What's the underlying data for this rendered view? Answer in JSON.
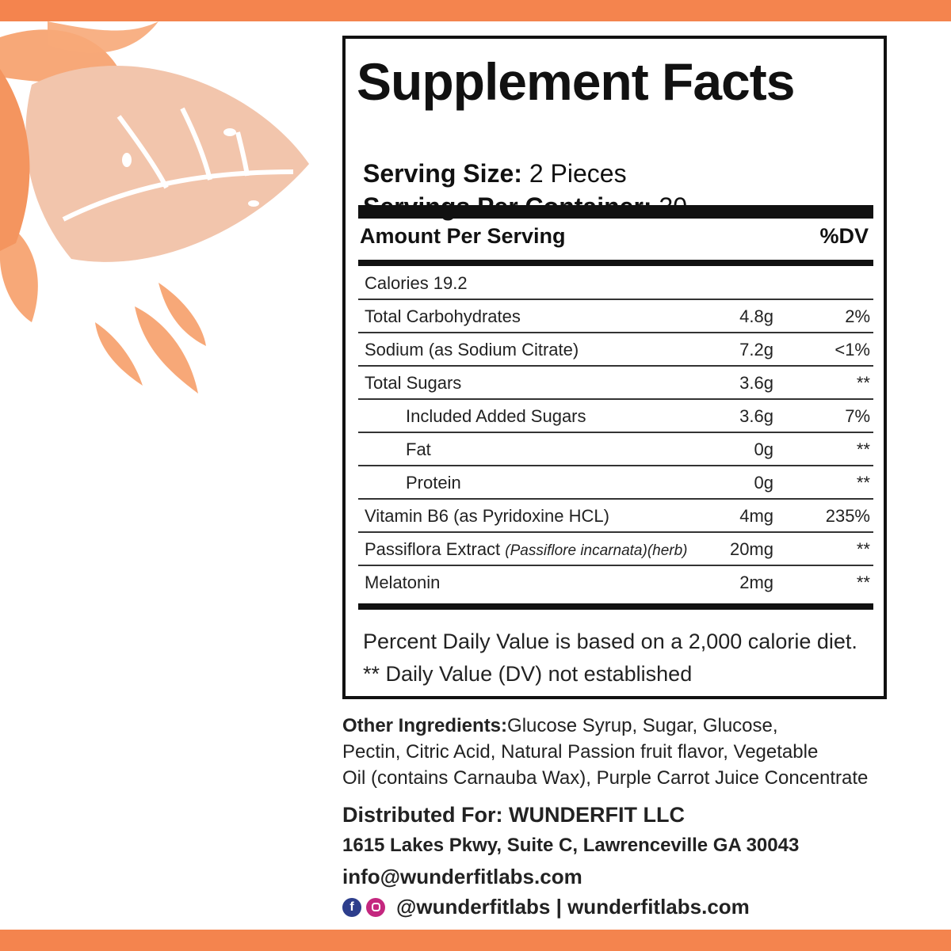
{
  "colors": {
    "accent": "#f4844e",
    "leaf_light": "#f2c5ac",
    "leaf_mid": "#f7a878"
  },
  "facts": {
    "title": "Supplement Facts",
    "serving_size_label": "Serving Size:",
    "serving_size_value": "2 Pieces",
    "servings_per_container_label": "Servings Per Container:",
    "servings_per_container_value": "30",
    "amount_per_serving": "Amount Per Serving",
    "dv_header": "%DV",
    "calories": "Calories 19.2",
    "rows": [
      {
        "name": "Total Carbohydrates",
        "amount": "4.8g",
        "dv": "2%"
      },
      {
        "name": "Sodium (as Sodium Citrate)",
        "amount": "7.2g",
        "dv": "<1%"
      },
      {
        "name": "Total Sugars",
        "amount": "3.6g",
        "dv": "**"
      },
      {
        "name": "Included Added Sugars",
        "amount": "3.6g",
        "dv": "7%"
      },
      {
        "name": "Fat",
        "amount": "0g",
        "dv": "**"
      },
      {
        "name": "Protein",
        "amount": "0g",
        "dv": "**"
      },
      {
        "name": "Vitamin B6 (as Pyridoxine HCL)",
        "amount": "4mg",
        "dv": "235%"
      },
      {
        "name": "Passiflora Extract",
        "sub": "(Passiflore incarnata)(herb)",
        "amount": "20mg",
        "dv": "**"
      },
      {
        "name": "Melatonin",
        "amount": "2mg",
        "dv": "**"
      }
    ],
    "footnote_1": "Percent Daily Value is based on a 2,000 calorie diet.",
    "footnote_2": "** Daily Value (DV) not established"
  },
  "ingredients": {
    "label": "Other Ingredients:",
    "line_1": "Glucose Syrup,  Sugar, Glucose,",
    "line_2": "Pectin, Citric Acid, Natural Passion fruit flavor, Vegetable",
    "line_3": "Oil (contains Carnauba Wax), Purple Carrot Juice Concentrate"
  },
  "distributor": {
    "label": "Distributed For: WUNDERFIT LLC",
    "address": "1615 Lakes Pkwy, Suite C, Lawrenceville GA 30043",
    "email": "info@wunderfitlabs.com",
    "social": "@wunderfitlabs | wunderfitlabs.com",
    "icons": [
      "facebook-icon",
      "instagram-icon"
    ]
  }
}
